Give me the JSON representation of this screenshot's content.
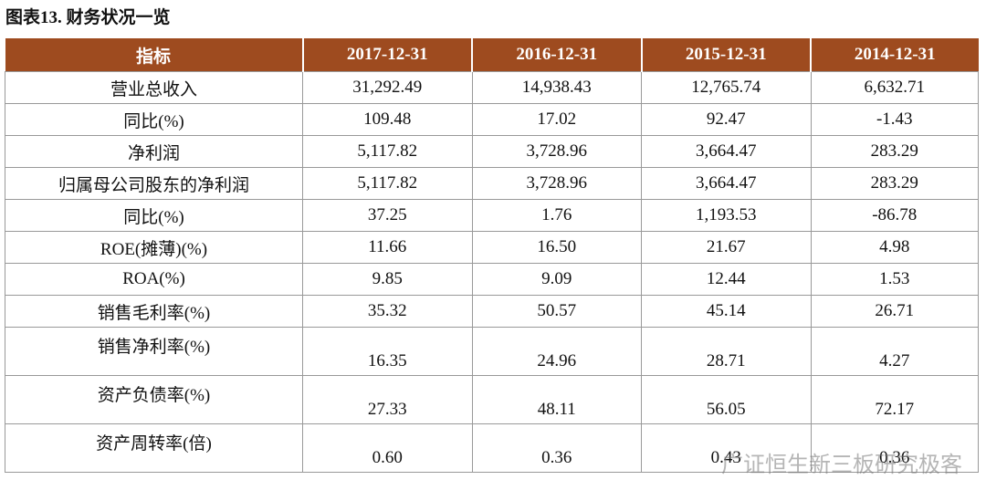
{
  "header": {
    "title": "图表13. 财务状况一览"
  },
  "table": {
    "columns": [
      "指标",
      "2017-12-31",
      "2016-12-31",
      "2015-12-31",
      "2014-12-31"
    ],
    "rows": [
      [
        "营业总收入",
        "31,292.49",
        "14,938.43",
        "12,765.74",
        "6,632.71"
      ],
      [
        "同比(%)",
        "109.48",
        "17.02",
        "92.47",
        "-1.43"
      ],
      [
        "净利润",
        "5,117.82",
        "3,728.96",
        "3,664.47",
        "283.29"
      ],
      [
        "归属母公司股东的净利润",
        "5,117.82",
        "3,728.96",
        "3,664.47",
        "283.29"
      ],
      [
        "同比(%)",
        "37.25",
        "1.76",
        "1,193.53",
        "-86.78"
      ],
      [
        "ROE(摊薄)(%)",
        "11.66",
        "16.50",
        "21.67",
        "4.98"
      ],
      [
        "ROA(%)",
        "9.85",
        "9.09",
        "12.44",
        "1.53"
      ],
      [
        "销售毛利率(%)",
        "35.32",
        "50.57",
        "45.14",
        "26.71"
      ],
      [
        "销售净利率(%)",
        "16.35",
        "24.96",
        "28.71",
        "4.27"
      ],
      [
        "资产负债率(%)",
        "27.33",
        "48.11",
        "56.05",
        "72.17"
      ],
      [
        "资产周转率(倍)",
        "0.60",
        "0.36",
        "0.43",
        "0.36"
      ]
    ]
  },
  "watermark": "广证恒生新三板研究极客"
}
